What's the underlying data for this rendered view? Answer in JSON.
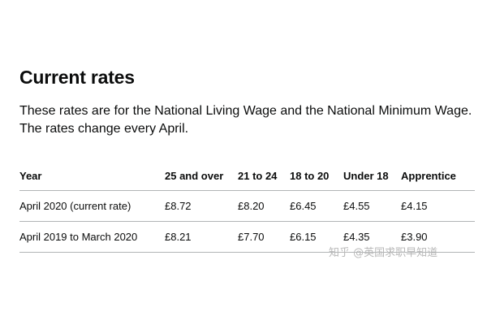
{
  "section": {
    "heading": "Current rates",
    "intro": "These rates are for the National Living Wage and the National Minimum Wage. The rates change every April."
  },
  "table": {
    "headers": [
      "Year",
      "25 and over",
      "21 to 24",
      "18 to 20",
      "Under 18",
      "Apprentice"
    ],
    "rows": [
      [
        "April 2020 (current rate)",
        "£8.72",
        "£8.20",
        "£6.45",
        "£4.55",
        "£4.15"
      ],
      [
        "April 2019 to March 2020",
        "£8.21",
        "£7.70",
        "£6.15",
        "£4.35",
        "£3.90"
      ]
    ]
  },
  "watermark": {
    "text": "知乎 @英国求职早知道"
  }
}
